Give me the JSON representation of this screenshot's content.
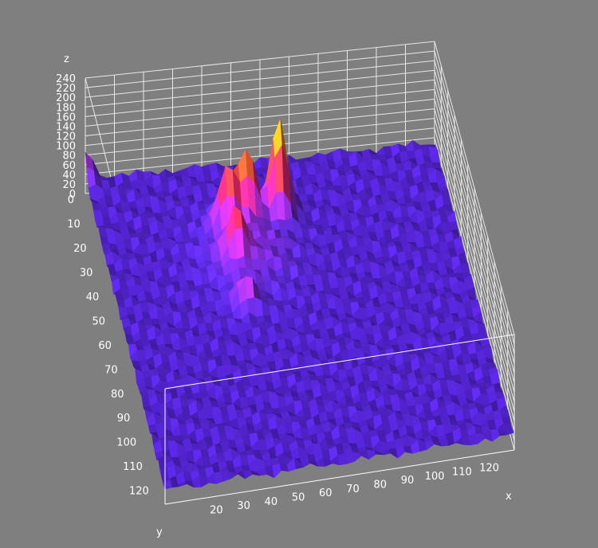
{
  "chart_data": {
    "type": "surface3d",
    "title": "",
    "xlabel": "x",
    "ylabel": "y",
    "zlabel": "z",
    "xlim": [
      0,
      128
    ],
    "ylim": [
      0,
      128
    ],
    "zlim": [
      0,
      240
    ],
    "x_ticks": [
      "20",
      "30",
      "40",
      "50",
      "60",
      "70",
      "80",
      "90",
      "100",
      "110",
      "120"
    ],
    "y_ticks": [
      "0",
      "10",
      "20",
      "30",
      "40",
      "50",
      "60",
      "70",
      "80",
      "90",
      "100",
      "110",
      "120"
    ],
    "z_ticks": [
      "0",
      "20",
      "40",
      "60",
      "80",
      "100",
      "120",
      "140",
      "160",
      "180",
      "200",
      "220",
      "240"
    ],
    "colormap": [
      "#2a0a8c",
      "#5b2ad6",
      "#b030e0",
      "#ff2a6a",
      "#ff7a1a",
      "#ffd020",
      "#ffff66"
    ],
    "background_level": 30,
    "peaks": [
      {
        "x": 66,
        "y": 22,
        "z": 220
      },
      {
        "x": 54,
        "y": 24,
        "z": 160
      },
      {
        "x": 46,
        "y": 26,
        "z": 150
      },
      {
        "x": 46,
        "y": 40,
        "z": 120
      },
      {
        "x": 46,
        "y": 58,
        "z": 85
      },
      {
        "x": 0,
        "y": 0,
        "z": 85
      }
    ],
    "grid": true
  }
}
